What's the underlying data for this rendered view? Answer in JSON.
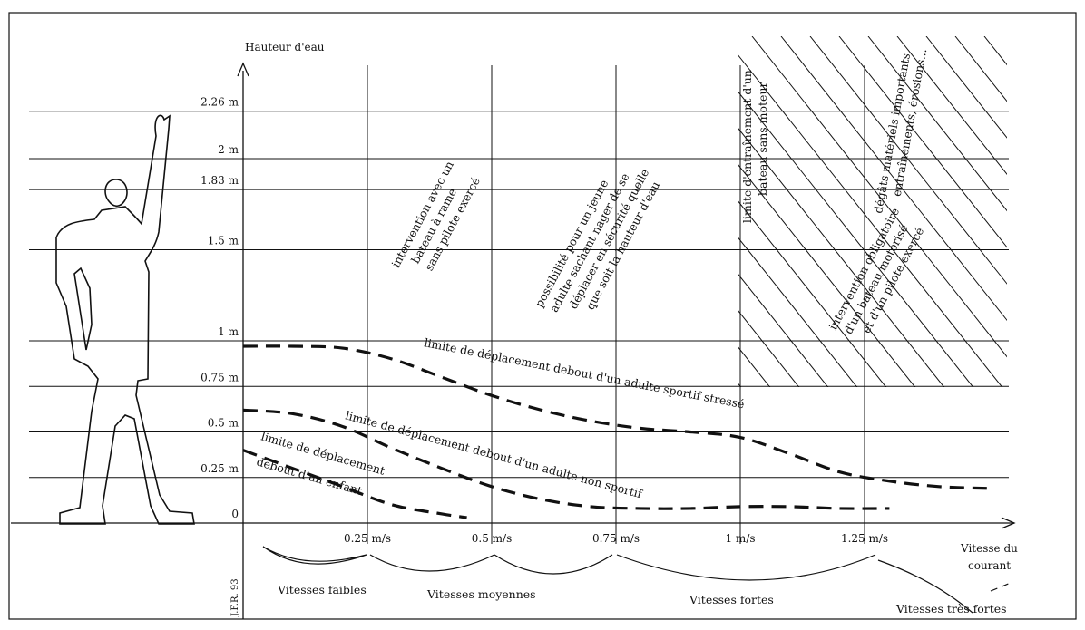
{
  "chart_data": {
    "type": "line",
    "ylabel": "Hauteur d'eau",
    "xlabel": "Vitesse du courant",
    "y_ticks": [
      {
        "value": 0,
        "label": "0"
      },
      {
        "value": 0.25,
        "label": "0.25 m"
      },
      {
        "value": 0.5,
        "label": "0.5 m"
      },
      {
        "value": 0.75,
        "label": "0.75 m"
      },
      {
        "value": 1,
        "label": "1 m"
      },
      {
        "value": 1.5,
        "label": "1.5 m"
      },
      {
        "value": 1.83,
        "label": "1.83 m"
      },
      {
        "value": 2,
        "label": "2 m"
      },
      {
        "value": 2.26,
        "label": "2.26 m"
      }
    ],
    "x_ticks": [
      {
        "value": 0.25,
        "label": "0.25 m/s"
      },
      {
        "value": 0.5,
        "label": "0.5 m/s"
      },
      {
        "value": 0.75,
        "label": "0.75 m/s"
      },
      {
        "value": 1,
        "label": "1 m/s"
      },
      {
        "value": 1.25,
        "label": "1.25 m/s"
      }
    ],
    "xlim": [
      0,
      1.5
    ],
    "ylim": [
      0,
      2.26
    ],
    "grid": true,
    "series": [
      {
        "name": "limite de déplacement debout d'un adulte sportif stressé",
        "style": "dashed",
        "x": [
          0,
          0.1,
          0.2,
          0.3,
          0.4,
          0.5,
          0.6,
          0.7,
          0.8,
          0.9,
          1.0,
          1.1,
          1.2,
          1.3,
          1.4,
          1.5
        ],
        "y": [
          0.97,
          0.97,
          0.96,
          0.9,
          0.8,
          0.7,
          0.62,
          0.56,
          0.52,
          0.5,
          0.47,
          0.38,
          0.28,
          0.23,
          0.2,
          0.19
        ]
      },
      {
        "name": "limite de déplacement debout d'un adulte non sportif",
        "style": "dashed",
        "x": [
          0,
          0.1,
          0.2,
          0.3,
          0.4,
          0.5,
          0.6,
          0.7,
          0.8,
          0.9,
          1.0,
          1.1,
          1.2,
          1.3
        ],
        "y": [
          0.62,
          0.6,
          0.53,
          0.41,
          0.3,
          0.2,
          0.13,
          0.09,
          0.08,
          0.08,
          0.09,
          0.09,
          0.08,
          0.08
        ]
      },
      {
        "name": "limite de déplacement debout d'un enfant",
        "style": "dashed",
        "x": [
          0,
          0.1,
          0.2,
          0.3,
          0.4,
          0.45
        ],
        "y": [
          0.4,
          0.3,
          0.2,
          0.1,
          0.05,
          0.03
        ]
      }
    ],
    "annotations": [
      {
        "id": "rame",
        "lines": [
          "intervention avec un",
          "bateau à rame",
          "sans pilote exercé"
        ]
      },
      {
        "id": "nager",
        "lines": [
          "possibilité pour un jeune",
          "adulte sachant nager de se",
          "déplacer en sécurité quelle",
          "que soit la hauteur d'eau"
        ]
      },
      {
        "id": "entrainement",
        "lines": [
          "limite d'entraînement d'un",
          "bateau sans moteur"
        ]
      },
      {
        "id": "motorise",
        "lines": [
          "intervention obligatoire",
          "d'un bateau motorisé",
          "et d'un pilote exercé"
        ]
      },
      {
        "id": "degats",
        "lines": [
          "dégâts matériels importants",
          "entraînements, érosions..."
        ]
      }
    ],
    "speed_bands": [
      {
        "label": "Vitesses faibles"
      },
      {
        "label": "Vitesses moyennes"
      },
      {
        "label": "Vitesses fortes"
      },
      {
        "label": "Vitesses très fortes"
      }
    ],
    "x_axis_end_label": [
      "Vitesse du",
      "courant"
    ],
    "signature": "J.F.R. 93"
  }
}
